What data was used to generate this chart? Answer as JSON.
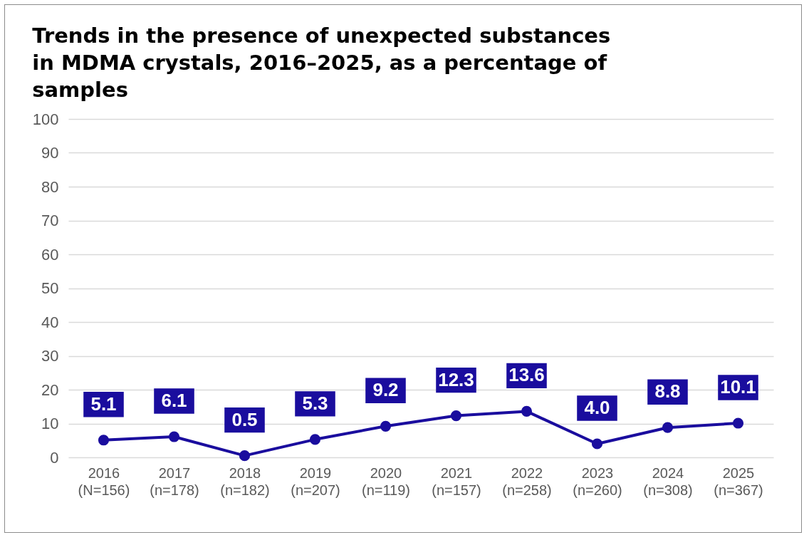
{
  "chart_data": {
    "type": "line",
    "title": "Trends in the presence of unexpected substances in MDMA crystals, 2016–2025, as a percentage of samples",
    "categories": [
      "2016 (N=156)",
      "2017 (n=178)",
      "2018 (n=182)",
      "2019 (n=207)",
      "2020 (n=119)",
      "2021 (n=157)",
      "2022 (n=258)",
      "2023 (n=260)",
      "2024 (n=308)",
      "2025 (n=367)"
    ],
    "values": [
      5.1,
      6.1,
      0.5,
      5.3,
      9.2,
      12.3,
      13.6,
      4.0,
      8.8,
      10.1
    ],
    "color": "#1a0d9e",
    "ylim": [
      0,
      100
    ],
    "yticks": [
      0,
      10,
      20,
      30,
      40,
      50,
      60,
      70,
      80,
      90,
      100
    ],
    "value_labels": [
      "5.1",
      "6.1",
      "0.5",
      "5.3",
      "9.2",
      "12.3",
      "13.6",
      "4.0",
      "8.8",
      "10.1"
    ],
    "grid": "y",
    "marker": "circle"
  }
}
